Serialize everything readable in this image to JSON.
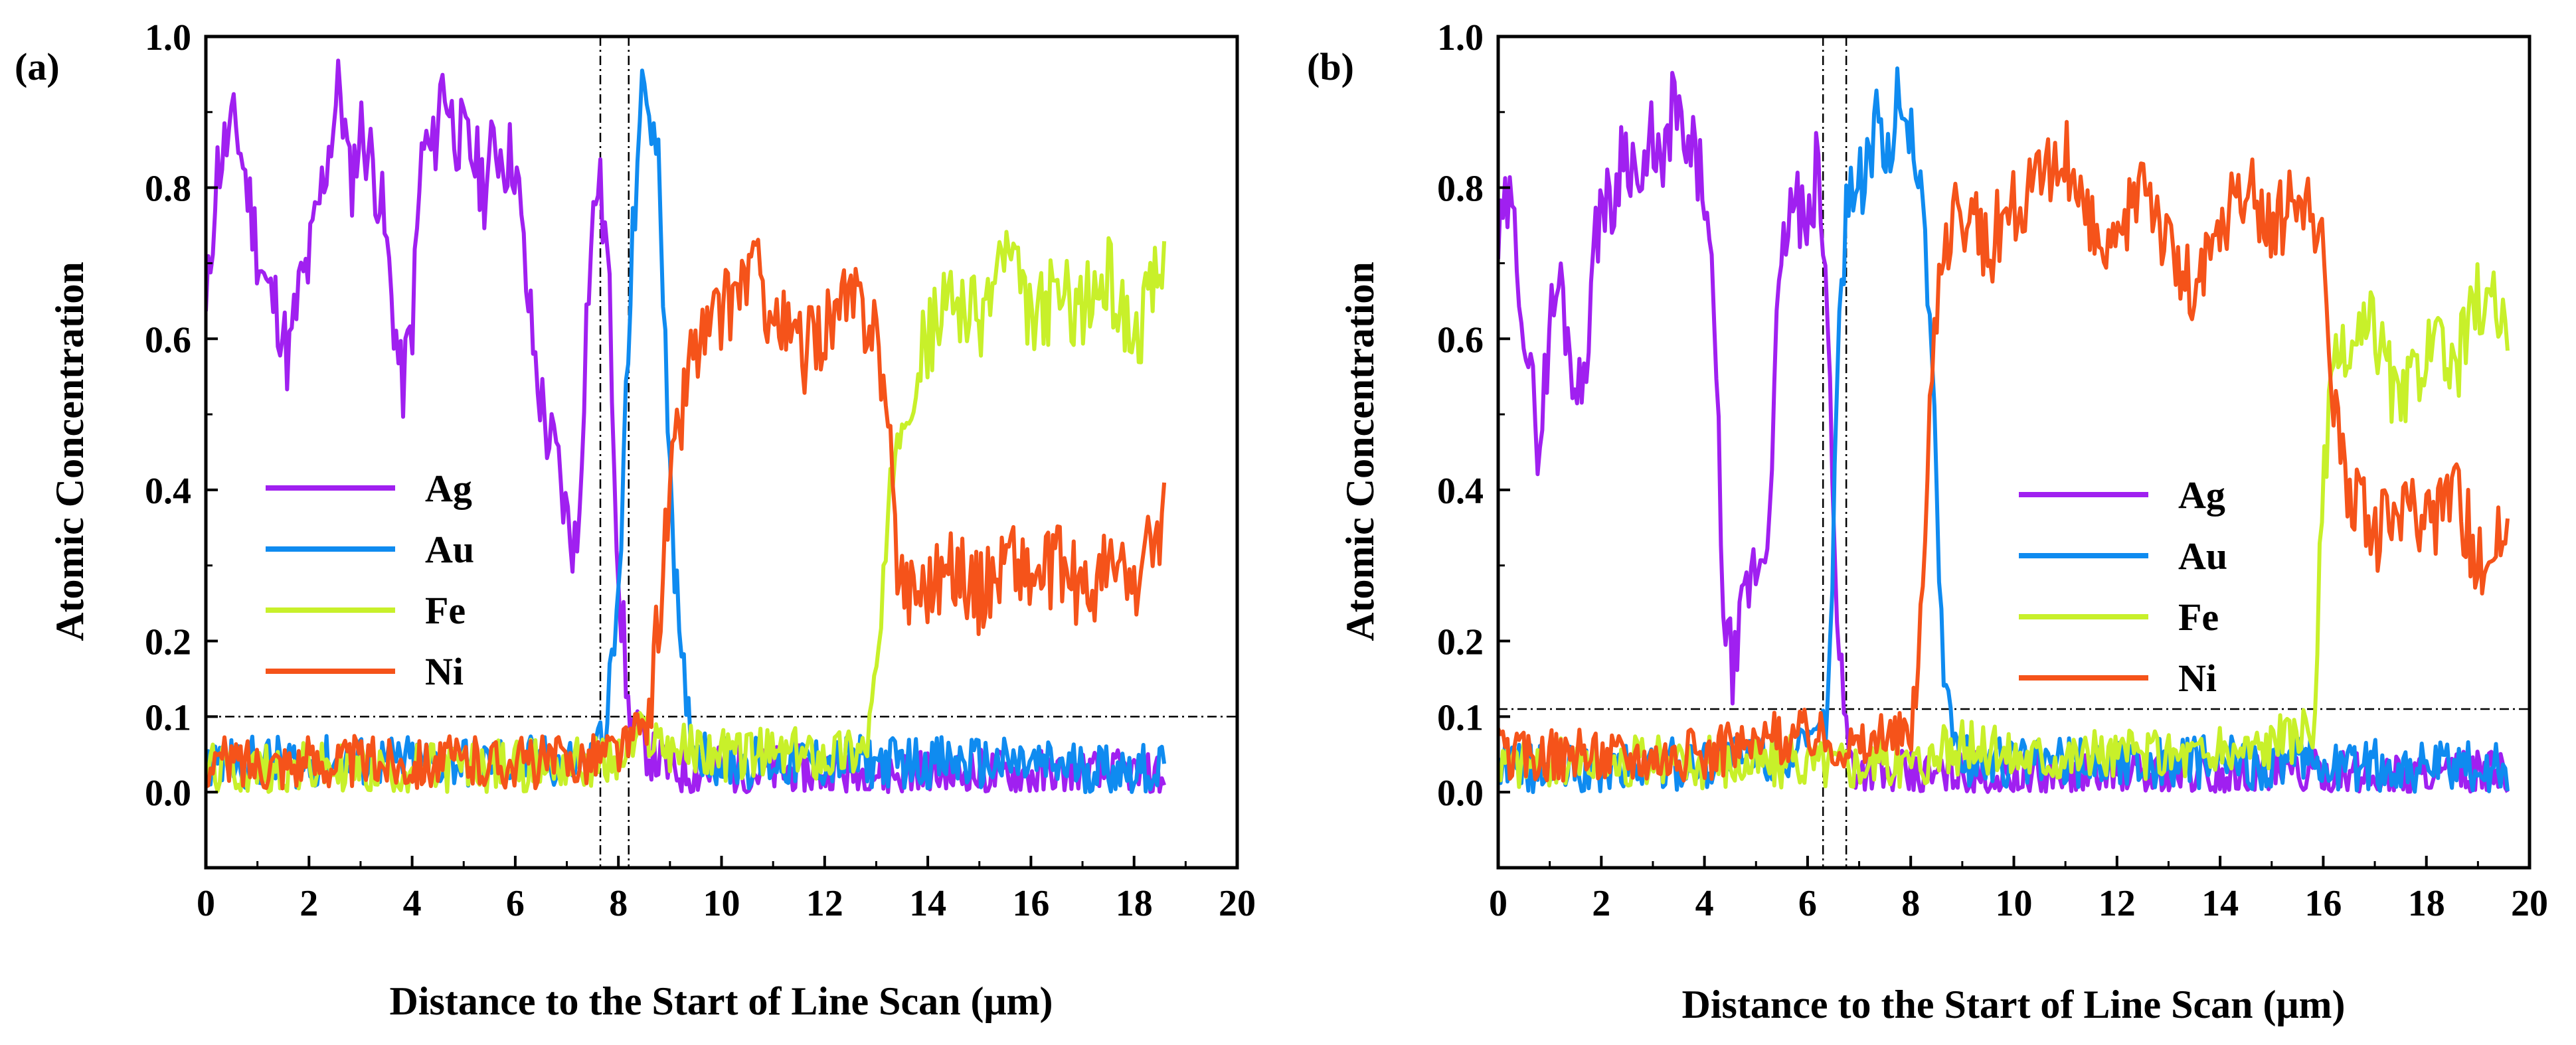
{
  "figure": {
    "colors": {
      "Ag": "#A020F0",
      "Au": "#0F8BF0",
      "Fe": "#C8F02A",
      "Ni": "#F5531A",
      "axis": "#000000"
    }
  },
  "chart_data": [
    {
      "type": "line",
      "panel_label": "(a)",
      "xlabel": "Distance to the Start of Line Scan (μm)",
      "ylabel": "Atomic Concentration",
      "xlim": [
        0,
        20
      ],
      "ylim": [
        -0.1,
        1.0
      ],
      "xticks": [
        "0",
        "2",
        "4",
        "6",
        "8",
        "10",
        "12",
        "14",
        "16",
        "18",
        "20"
      ],
      "yticks": [
        "0.0",
        "0.1",
        "0.2",
        "0.4",
        "0.6",
        "0.8",
        "1.0"
      ],
      "legend": [
        "Ag",
        "Au",
        "Fe",
        "Ni"
      ],
      "legend_position": "lower-left",
      "reference_lines": {
        "horizontal": [
          0.1
        ],
        "vertical": [
          7.65,
          8.2
        ]
      },
      "x_end": 18.6,
      "series": [
        {
          "name": "Ag",
          "x": [
            0,
            0.2,
            0.4,
            0.6,
            0.8,
            1.0,
            1.2,
            1.4,
            1.6,
            1.8,
            2.0,
            2.2,
            2.4,
            2.6,
            2.8,
            3.0,
            3.2,
            3.4,
            3.6,
            3.8,
            4.0,
            4.2,
            4.4,
            4.6,
            4.8,
            5.0,
            5.2,
            5.4,
            5.6,
            5.8,
            6.0,
            6.2,
            6.4,
            6.6,
            6.8,
            7.0,
            7.2,
            7.4,
            7.6,
            7.8,
            8.0,
            8.2,
            8.6,
            9.0,
            18.6
          ],
          "y": [
            0.62,
            0.82,
            0.86,
            0.88,
            0.8,
            0.72,
            0.66,
            0.64,
            0.57,
            0.66,
            0.7,
            0.78,
            0.86,
            0.94,
            0.8,
            0.88,
            0.84,
            0.78,
            0.66,
            0.53,
            0.62,
            0.86,
            0.84,
            0.95,
            0.88,
            0.86,
            0.84,
            0.8,
            0.86,
            0.84,
            0.84,
            0.68,
            0.56,
            0.48,
            0.44,
            0.36,
            0.32,
            0.66,
            0.82,
            0.7,
            0.3,
            0.1,
            0.05,
            0.03,
            0.02
          ]
        },
        {
          "name": "Au",
          "x": [
            0,
            2,
            4,
            6,
            7.5,
            7.8,
            8.0,
            8.2,
            8.4,
            8.6,
            8.8,
            9.0,
            9.2,
            9.5,
            10,
            14,
            18.6
          ],
          "y": [
            0.04,
            0.04,
            0.04,
            0.04,
            0.04,
            0.1,
            0.25,
            0.6,
            0.9,
            0.92,
            0.8,
            0.45,
            0.15,
            0.06,
            0.04,
            0.04,
            0.03
          ]
        },
        {
          "name": "Fe",
          "x": [
            0,
            4,
            8,
            8.5,
            9,
            10,
            12,
            12.8,
            13.0,
            13.2,
            13.4,
            14,
            14.5,
            15,
            15.5,
            16,
            16.5,
            17,
            17.5,
            18,
            18.6
          ],
          "y": [
            0.03,
            0.03,
            0.04,
            0.08,
            0.06,
            0.05,
            0.05,
            0.06,
            0.15,
            0.3,
            0.5,
            0.6,
            0.66,
            0.62,
            0.72,
            0.62,
            0.66,
            0.64,
            0.68,
            0.6,
            0.7
          ]
        },
        {
          "name": "Ni",
          "x": [
            0,
            4,
            7,
            8.2,
            8.6,
            9.0,
            9.4,
            10,
            10.6,
            11,
            11.6,
            12,
            12.6,
            13.0,
            13.2,
            13.4,
            13.6,
            14,
            14.6,
            15,
            15.6,
            16,
            16.6,
            17,
            17.6,
            18,
            18.6
          ],
          "y": [
            0.04,
            0.04,
            0.04,
            0.06,
            0.1,
            0.4,
            0.58,
            0.63,
            0.7,
            0.63,
            0.58,
            0.62,
            0.65,
            0.62,
            0.5,
            0.32,
            0.27,
            0.28,
            0.3,
            0.26,
            0.32,
            0.28,
            0.3,
            0.26,
            0.3,
            0.27,
            0.37
          ]
        }
      ]
    },
    {
      "type": "line",
      "panel_label": "(b)",
      "xlabel": "Distance to the Start of Line Scan (μm)",
      "ylabel": "Atomic Concentration",
      "xlim": [
        0,
        20
      ],
      "ylim": [
        -0.1,
        1.0
      ],
      "xticks": [
        "0",
        "2",
        "4",
        "6",
        "8",
        "10",
        "12",
        "14",
        "16",
        "18",
        "20"
      ],
      "yticks": [
        "0.0",
        "0.1",
        "0.2",
        "0.4",
        "0.6",
        "0.8",
        "1.0"
      ],
      "legend": [
        "Ag",
        "Au",
        "Fe",
        "Ni"
      ],
      "legend_position": "lower-center",
      "reference_lines": {
        "horizontal": [
          0.11
        ],
        "vertical": [
          6.3,
          6.75
        ]
      },
      "x_end": 19.6,
      "series": [
        {
          "name": "Ag",
          "x": [
            0,
            0.2,
            0.4,
            0.6,
            0.8,
            1.0,
            1.2,
            1.4,
            1.6,
            1.8,
            2.0,
            2.2,
            2.4,
            2.6,
            2.8,
            3.0,
            3.2,
            3.4,
            3.6,
            3.8,
            4.0,
            4.2,
            4.4,
            4.6,
            4.8,
            5.0,
            5.2,
            5.4,
            5.6,
            5.8,
            6.0,
            6.2,
            6.4,
            6.6,
            6.8,
            7.0,
            7.5,
            8,
            19.6
          ],
          "y": [
            0.72,
            0.78,
            0.7,
            0.55,
            0.46,
            0.62,
            0.68,
            0.58,
            0.52,
            0.66,
            0.8,
            0.76,
            0.86,
            0.84,
            0.78,
            0.88,
            0.8,
            0.93,
            0.84,
            0.84,
            0.8,
            0.6,
            0.2,
            0.16,
            0.26,
            0.3,
            0.32,
            0.6,
            0.76,
            0.78,
            0.72,
            0.84,
            0.6,
            0.2,
            0.05,
            0.03,
            0.02,
            0.02,
            0.02
          ]
        },
        {
          "name": "Au",
          "x": [
            0,
            2,
            4,
            6,
            6.4,
            6.6,
            6.8,
            7.0,
            7.2,
            7.4,
            7.6,
            7.8,
            8.0,
            8.2,
            8.4,
            8.6,
            8.8,
            9.0,
            10,
            14,
            19.6
          ],
          "y": [
            0.03,
            0.03,
            0.04,
            0.05,
            0.1,
            0.6,
            0.82,
            0.8,
            0.86,
            0.88,
            0.84,
            0.95,
            0.86,
            0.82,
            0.6,
            0.2,
            0.08,
            0.04,
            0.04,
            0.04,
            0.03
          ]
        },
        {
          "name": "Fe",
          "x": [
            0,
            4,
            8,
            8.5,
            9,
            10,
            12,
            14,
            15.8,
            16.0,
            16.2,
            16.5,
            17,
            17.5,
            18,
            18.5,
            19,
            19.6
          ],
          "y": [
            0.04,
            0.04,
            0.04,
            0.05,
            0.06,
            0.05,
            0.05,
            0.05,
            0.08,
            0.4,
            0.55,
            0.58,
            0.62,
            0.5,
            0.6,
            0.55,
            0.66,
            0.62
          ]
        },
        {
          "name": "Ni",
          "x": [
            0,
            4,
            6,
            7,
            8,
            8.2,
            8.4,
            8.6,
            9,
            9.5,
            10,
            10.5,
            11,
            11.5,
            12,
            12.5,
            13,
            13.5,
            14,
            14.5,
            15,
            15.5,
            16.0,
            16.2,
            16.5,
            17,
            17.5,
            18,
            18.5,
            19,
            19.6
          ],
          "y": [
            0.05,
            0.05,
            0.08,
            0.06,
            0.08,
            0.2,
            0.55,
            0.74,
            0.76,
            0.72,
            0.78,
            0.8,
            0.84,
            0.74,
            0.7,
            0.84,
            0.72,
            0.66,
            0.74,
            0.8,
            0.74,
            0.8,
            0.7,
            0.52,
            0.4,
            0.34,
            0.38,
            0.34,
            0.42,
            0.3,
            0.36
          ]
        }
      ]
    }
  ]
}
